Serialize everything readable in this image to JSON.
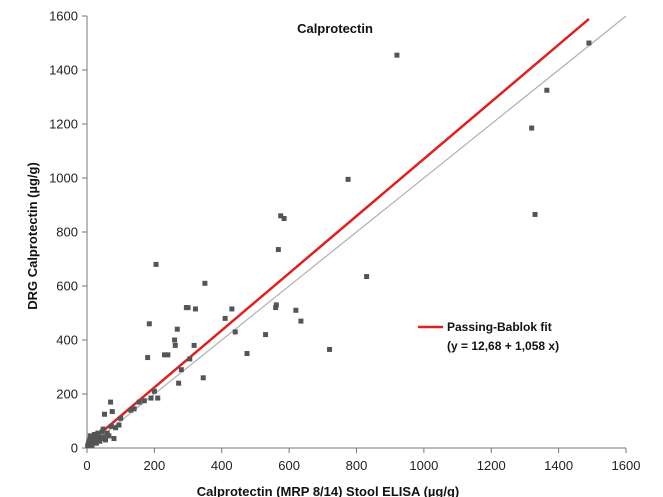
{
  "chart_data": {
    "type": "scatter",
    "title": "Calprotectin",
    "xlabel": "Calprotectin (MRP 8/14) Stool ELISA (µg/g)",
    "ylabel": "DRG Calprotectin (µg/g)",
    "xlim": [
      0,
      1600
    ],
    "ylim": [
      0,
      1600
    ],
    "x_ticks": [
      0,
      200,
      400,
      600,
      800,
      1000,
      1200,
      1400,
      1600
    ],
    "y_ticks": [
      0,
      200,
      400,
      600,
      800,
      1000,
      1200,
      1400,
      1600
    ],
    "grid": false,
    "legend_position": "right",
    "colors": {
      "points": "#555555",
      "fit": "#e02020",
      "identity": "#b0b0b0"
    },
    "series": [
      {
        "name": "",
        "marker": "square",
        "points": [
          [
            2,
            8
          ],
          [
            4,
            15
          ],
          [
            5,
            22
          ],
          [
            6,
            12
          ],
          [
            8,
            30
          ],
          [
            10,
            45
          ],
          [
            12,
            20
          ],
          [
            15,
            10
          ],
          [
            18,
            35
          ],
          [
            20,
            25
          ],
          [
            22,
            50
          ],
          [
            25,
            40
          ],
          [
            28,
            18
          ],
          [
            30,
            30
          ],
          [
            32,
            55
          ],
          [
            35,
            45
          ],
          [
            38,
            25
          ],
          [
            40,
            35
          ],
          [
            45,
            60
          ],
          [
            48,
            70
          ],
          [
            50,
            40
          ],
          [
            52,
            125
          ],
          [
            55,
            30
          ],
          [
            60,
            55
          ],
          [
            65,
            45
          ],
          [
            70,
            170
          ],
          [
            72,
            80
          ],
          [
            75,
            135
          ],
          [
            80,
            35
          ],
          [
            85,
            75
          ],
          [
            95,
            85
          ],
          [
            100,
            110
          ],
          [
            130,
            140
          ],
          [
            140,
            145
          ],
          [
            155,
            170
          ],
          [
            170,
            175
          ],
          [
            180,
            335
          ],
          [
            185,
            460
          ],
          [
            190,
            185
          ],
          [
            200,
            210
          ],
          [
            205,
            680
          ],
          [
            210,
            185
          ],
          [
            230,
            345
          ],
          [
            240,
            345
          ],
          [
            260,
            400
          ],
          [
            262,
            380
          ],
          [
            268,
            440
          ],
          [
            272,
            240
          ],
          [
            280,
            290
          ],
          [
            295,
            520
          ],
          [
            300,
            520
          ],
          [
            305,
            330
          ],
          [
            318,
            380
          ],
          [
            322,
            515
          ],
          [
            345,
            260
          ],
          [
            350,
            610
          ],
          [
            410,
            480
          ],
          [
            430,
            515
          ],
          [
            440,
            430
          ],
          [
            475,
            350
          ],
          [
            530,
            420
          ],
          [
            560,
            520
          ],
          [
            562,
            530
          ],
          [
            568,
            735
          ],
          [
            575,
            860
          ],
          [
            585,
            850
          ],
          [
            620,
            510
          ],
          [
            635,
            470
          ],
          [
            720,
            365
          ],
          [
            775,
            995
          ],
          [
            830,
            635
          ],
          [
            920,
            1455
          ],
          [
            1320,
            1185
          ],
          [
            1330,
            865
          ],
          [
            1365,
            1325
          ],
          [
            1490,
            1500
          ]
        ]
      }
    ],
    "fit_line": {
      "label": "Passing-Bablok fit",
      "equation": "(y = 12,68 + 1,058 x)",
      "intercept": 12.68,
      "slope": 1.058,
      "x_range": [
        0,
        1490
      ]
    },
    "identity_line": {
      "x_range": [
        0,
        1600
      ]
    }
  }
}
